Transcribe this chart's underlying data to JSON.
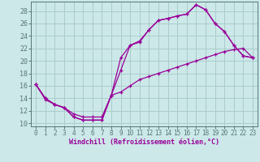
{
  "background_color": "#cce8e8",
  "grid_color": "#aacccc",
  "line_color": "#990099",
  "xlabel": "Windchill (Refroidissement éolien,°C)",
  "xlim_min": -0.5,
  "xlim_max": 23.5,
  "ylim_min": 9.5,
  "ylim_max": 29.5,
  "yticks": [
    10,
    12,
    14,
    16,
    18,
    20,
    22,
    24,
    26,
    28
  ],
  "xticks": [
    0,
    1,
    2,
    3,
    4,
    5,
    6,
    7,
    8,
    9,
    10,
    11,
    12,
    13,
    14,
    15,
    16,
    17,
    18,
    19,
    20,
    21,
    22,
    23
  ],
  "curve1_x": [
    0,
    1,
    2,
    3,
    4,
    5,
    6,
    7,
    8,
    9,
    10,
    11,
    12,
    13,
    14,
    15,
    16,
    17,
    18,
    19,
    20,
    21,
    22,
    23
  ],
  "curve1_y": [
    16.2,
    14.0,
    13.0,
    12.5,
    11.0,
    10.5,
    10.5,
    10.5,
    14.5,
    18.5,
    22.5,
    23.2,
    25.0,
    26.5,
    26.8,
    27.2,
    27.5,
    29.0,
    28.2,
    26.0,
    24.7,
    22.5,
    20.8,
    20.5
  ],
  "curve2_x": [
    0,
    1,
    2,
    3,
    4,
    5,
    6,
    7,
    8,
    9,
    10,
    11,
    12,
    13,
    14,
    15,
    16,
    17,
    18,
    19,
    20,
    21,
    22,
    23
  ],
  "curve2_y": [
    16.2,
    14.0,
    13.0,
    12.5,
    11.0,
    10.5,
    10.5,
    10.5,
    14.5,
    20.5,
    22.5,
    23.0,
    25.0,
    26.5,
    26.8,
    27.2,
    27.5,
    29.0,
    28.2,
    26.0,
    24.7,
    22.5,
    20.8,
    20.5
  ],
  "curve3_x": [
    0,
    1,
    2,
    3,
    4,
    5,
    6,
    7,
    8,
    9,
    10,
    11,
    12,
    13,
    14,
    15,
    16,
    17,
    18,
    19,
    20,
    21,
    22,
    23
  ],
  "curve3_y": [
    16.2,
    13.8,
    13.0,
    12.5,
    11.5,
    11.0,
    11.0,
    11.0,
    14.5,
    15.0,
    16.0,
    17.0,
    17.5,
    18.0,
    18.5,
    19.0,
    19.5,
    20.0,
    20.5,
    21.0,
    21.5,
    21.8,
    22.0,
    20.5
  ],
  "spine_color": "#557777",
  "tick_label_fontsize": 5.5,
  "xlabel_fontsize": 6.0
}
